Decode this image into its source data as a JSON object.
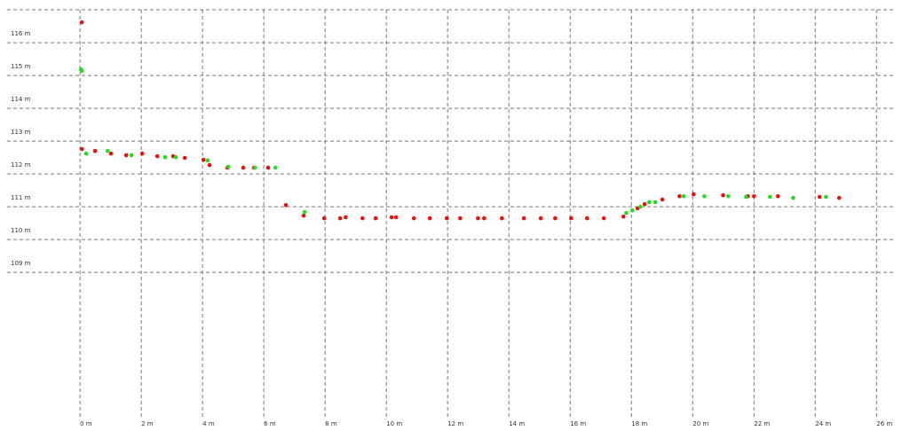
{
  "chart_data": {
    "type": "scatter",
    "xlim": [
      -2.38,
      26.6
    ],
    "ylim": [
      104.6,
      117.3
    ],
    "xticks": [
      {
        "value": 0,
        "label": "0 m"
      },
      {
        "value": 2,
        "label": "2 m"
      },
      {
        "value": 4,
        "label": "4 m"
      },
      {
        "value": 6,
        "label": "6 m"
      },
      {
        "value": 8,
        "label": "8 m"
      },
      {
        "value": 10,
        "label": "10 m"
      },
      {
        "value": 12,
        "label": "12 m"
      },
      {
        "value": 14,
        "label": "14 m"
      },
      {
        "value": 16,
        "label": "16 m"
      },
      {
        "value": 18,
        "label": "18 m"
      },
      {
        "value": 20,
        "label": "20 m"
      },
      {
        "value": 22,
        "label": "22 m"
      },
      {
        "value": 24,
        "label": "24 m"
      },
      {
        "value": 26,
        "label": "26 m"
      }
    ],
    "yticks": [
      {
        "value": 109,
        "label": "109 m"
      },
      {
        "value": 110,
        "label": "110 m"
      },
      {
        "value": 111,
        "label": "111 m"
      },
      {
        "value": 112,
        "label": "112 m"
      },
      {
        "value": 113,
        "label": "113 m"
      },
      {
        "value": 114,
        "label": "114 m"
      },
      {
        "value": 115,
        "label": "115 m"
      },
      {
        "value": 116,
        "label": "116 m"
      }
    ],
    "grid": true,
    "series": [
      {
        "color": "#e81010",
        "x": [
          0.06,
          0.06,
          0.49,
          1.01,
          1.51,
          2.03,
          2.52,
          3.04,
          3.42,
          4.03,
          4.23,
          4.81,
          5.33,
          5.68,
          6.14,
          6.72,
          7.3,
          7.97,
          8.49,
          8.67,
          9.22,
          9.65,
          10.17,
          10.32,
          10.9,
          11.42,
          11.97,
          12.41,
          12.99,
          13.19,
          13.77,
          14.49,
          15.04,
          15.51,
          16.03,
          16.55,
          17.1,
          17.74,
          18.2,
          18.43,
          19.01,
          19.57,
          20.03,
          20.99,
          21.8,
          22.0,
          22.78,
          24.14,
          24.78
        ],
        "y": [
          116.62,
          112.76,
          112.7,
          112.62,
          112.57,
          112.62,
          112.54,
          112.54,
          112.49,
          112.43,
          112.27,
          112.19,
          112.19,
          112.19,
          112.19,
          111.05,
          110.73,
          110.65,
          110.65,
          110.68,
          110.65,
          110.65,
          110.68,
          110.68,
          110.65,
          110.65,
          110.65,
          110.65,
          110.65,
          110.65,
          110.65,
          110.65,
          110.65,
          110.65,
          110.65,
          110.65,
          110.65,
          110.7,
          110.95,
          111.08,
          111.22,
          111.32,
          111.38,
          111.35,
          111.32,
          111.32,
          111.32,
          111.3,
          111.27
        ]
      },
      {
        "color": "#22dd22",
        "x": [
          0.03,
          0.06,
          0.2,
          0.9,
          1.68,
          2.78,
          3.13,
          4.17,
          4.84,
          5.71,
          6.38,
          7.33,
          17.83,
          18.03,
          18.29,
          18.58,
          18.78,
          19.71,
          20.38,
          21.16,
          21.74,
          22.52,
          23.28,
          24.35
        ],
        "y": [
          115.19,
          115.14,
          112.62,
          112.7,
          112.57,
          112.51,
          112.51,
          112.41,
          112.22,
          112.19,
          112.19,
          110.84,
          110.81,
          110.89,
          111.0,
          111.14,
          111.14,
          111.32,
          111.32,
          111.32,
          111.3,
          111.3,
          111.27,
          111.3
        ]
      }
    ]
  }
}
